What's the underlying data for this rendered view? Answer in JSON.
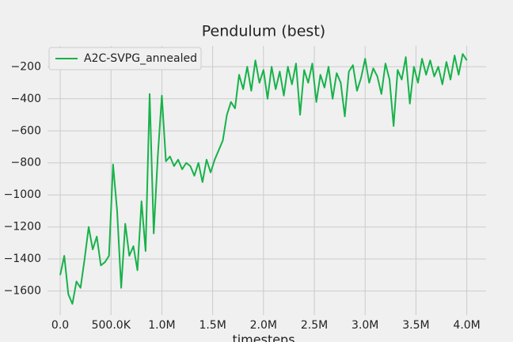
{
  "chart_data": {
    "type": "line",
    "title": "Pendulum (best)",
    "x_label": "timesteps",
    "x": [
      0,
      40000,
      80000,
      120000,
      160000,
      200000,
      240000,
      280000,
      320000,
      360000,
      400000,
      440000,
      480000,
      520000,
      560000,
      600000,
      640000,
      680000,
      720000,
      760000,
      800000,
      840000,
      880000,
      920000,
      960000,
      1000000,
      1040000,
      1080000,
      1120000,
      1160000,
      1200000,
      1240000,
      1280000,
      1320000,
      1360000,
      1400000,
      1440000,
      1480000,
      1520000,
      1560000,
      1600000,
      1640000,
      1680000,
      1720000,
      1760000,
      1800000,
      1840000,
      1880000,
      1920000,
      1960000,
      2000000,
      2040000,
      2080000,
      2120000,
      2160000,
      2200000,
      2240000,
      2280000,
      2320000,
      2360000,
      2400000,
      2440000,
      2480000,
      2520000,
      2560000,
      2600000,
      2640000,
      2680000,
      2720000,
      2760000,
      2800000,
      2840000,
      2880000,
      2920000,
      2960000,
      3000000,
      3040000,
      3080000,
      3120000,
      3160000,
      3200000,
      3240000,
      3280000,
      3320000,
      3360000,
      3400000,
      3440000,
      3480000,
      3520000,
      3560000,
      3600000,
      3640000,
      3680000,
      3720000,
      3760000,
      3800000,
      3840000,
      3880000,
      3920000,
      3960000,
      4000000
    ],
    "series": [
      {
        "name": "A2C-SVPG_annealed",
        "color": "#17b24a",
        "values": [
          -1500,
          -1380,
          -1620,
          -1680,
          -1540,
          -1580,
          -1400,
          -1200,
          -1340,
          -1260,
          -1440,
          -1420,
          -1380,
          -810,
          -1100,
          -1580,
          -1180,
          -1380,
          -1320,
          -1470,
          -1040,
          -1350,
          -370,
          -1240,
          -760,
          -380,
          -790,
          -760,
          -820,
          -780,
          -840,
          -800,
          -820,
          -880,
          -800,
          -920,
          -780,
          -860,
          -780,
          -720,
          -660,
          -500,
          -420,
          -460,
          -250,
          -340,
          -200,
          -350,
          -160,
          -300,
          -220,
          -400,
          -200,
          -340,
          -230,
          -380,
          -200,
          -310,
          -180,
          -500,
          -220,
          -300,
          -180,
          -420,
          -250,
          -330,
          -200,
          -400,
          -240,
          -300,
          -510,
          -230,
          -190,
          -350,
          -270,
          -150,
          -300,
          -210,
          -260,
          -370,
          -180,
          -280,
          -570,
          -220,
          -280,
          -140,
          -430,
          -200,
          -300,
          -150,
          -250,
          -160,
          -260,
          -200,
          -310,
          -170,
          -280,
          -130,
          -250,
          -120,
          -160
        ]
      }
    ],
    "xlim": [
      -125000,
      4190000
    ],
    "xticks": [
      {
        "value": 0,
        "label": "0.0"
      },
      {
        "value": 500000,
        "label": "500.0K"
      },
      {
        "value": 1000000,
        "label": "1.0M"
      },
      {
        "value": 1500000,
        "label": "1.5M"
      },
      {
        "value": 2000000,
        "label": "2.0M"
      },
      {
        "value": 2500000,
        "label": "2.5M"
      },
      {
        "value": 3000000,
        "label": "3.0M"
      },
      {
        "value": 3500000,
        "label": "3.5M"
      },
      {
        "value": 4000000,
        "label": "4.0M"
      }
    ],
    "ylim": [
      -1750,
      -70
    ],
    "yticks": [
      {
        "value": -1600,
        "label": "−1600"
      },
      {
        "value": -1400,
        "label": "−1400"
      },
      {
        "value": -1200,
        "label": "−1200"
      },
      {
        "value": -1000,
        "label": "−1000"
      },
      {
        "value": -800,
        "label": "−800"
      },
      {
        "value": -600,
        "label": "−600"
      },
      {
        "value": -400,
        "label": "−400"
      },
      {
        "value": -200,
        "label": "−200"
      }
    ],
    "grid": true,
    "legend": "upper-left"
  }
}
